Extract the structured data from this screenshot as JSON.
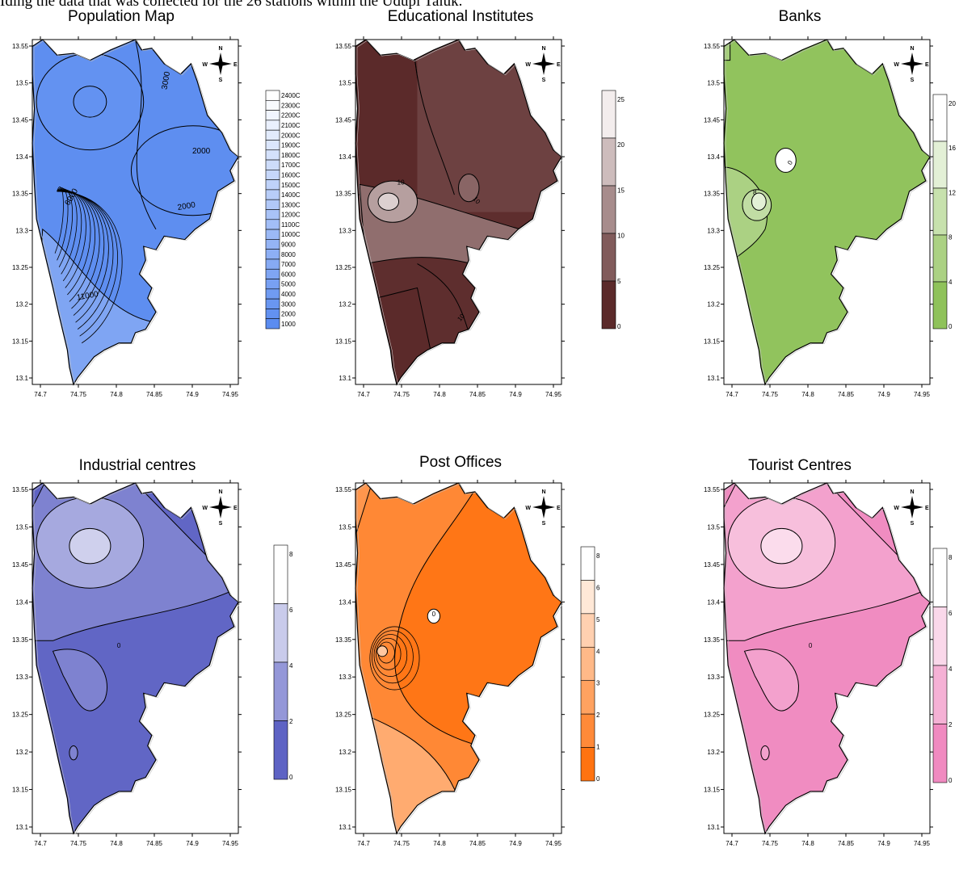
{
  "caption": "Iding the data that was collected for the 26 stations within the Udupi Taluk.",
  "compass": {
    "n": "N",
    "s": "S",
    "w": "W",
    "e": "E"
  },
  "axes": {
    "x_ticks": [
      "74.7",
      "74.75",
      "74.8",
      "74.85",
      "74.9",
      "74.95"
    ],
    "y_ticks": [
      "13.55",
      "13.5",
      "13.45",
      "13.4",
      "13.35",
      "13.3",
      "13.25",
      "13.2",
      "13.15",
      "13.1"
    ]
  },
  "panels": [
    {
      "title": "Population Map",
      "palette": {
        "low": "#5b8cf0",
        "high": "#ffffff"
      },
      "legend_labels": [
        "2400C",
        "2300C",
        "2200C",
        "2100C",
        "2000C",
        "1900C",
        "1800C",
        "1700C",
        "1600C",
        "1500C",
        "1400C",
        "1300C",
        "1200C",
        "1100C",
        "1000C",
        "9000",
        "8000",
        "7000",
        "6000",
        "5000",
        "4000",
        "3000",
        "2000",
        "1000"
      ],
      "contour_labels": [
        "3000",
        "2000",
        "2000",
        "6000",
        "11000"
      ]
    },
    {
      "title": "Educational Institutes",
      "palette": {
        "low": "#5b2a2a",
        "high": "#f3eded"
      },
      "legend_labels": [
        "25",
        "20",
        "15",
        "10",
        "5",
        "0"
      ],
      "contour_labels": [
        "10",
        "10",
        "10"
      ]
    },
    {
      "title": "Banks",
      "palette": {
        "low": "#8fc25a",
        "high": "#ffffff"
      },
      "legend_labels": [
        "20",
        "16",
        "12",
        "8",
        "4",
        "0"
      ],
      "contour_labels": [
        "0",
        "8"
      ]
    },
    {
      "title": "Industrial centres",
      "palette": {
        "low": "#5e63c4",
        "high": "#ffffff"
      },
      "legend_labels": [
        "8",
        "6",
        "4",
        "2",
        "0"
      ],
      "contour_labels": [
        "0"
      ]
    },
    {
      "title": "Post Offices",
      "palette": {
        "low": "#ff7311",
        "high": "#ffffff"
      },
      "legend_labels": [
        "8",
        "6",
        "5",
        "4",
        "3",
        "2",
        "1",
        "0"
      ],
      "contour_labels": [
        "0"
      ]
    },
    {
      "title": "Tourist Centres",
      "palette": {
        "low": "#f08ac0",
        "high": "#ffffff"
      },
      "legend_labels": [
        "8",
        "6",
        "4",
        "2",
        "0"
      ],
      "contour_labels": [
        "0"
      ]
    }
  ]
}
